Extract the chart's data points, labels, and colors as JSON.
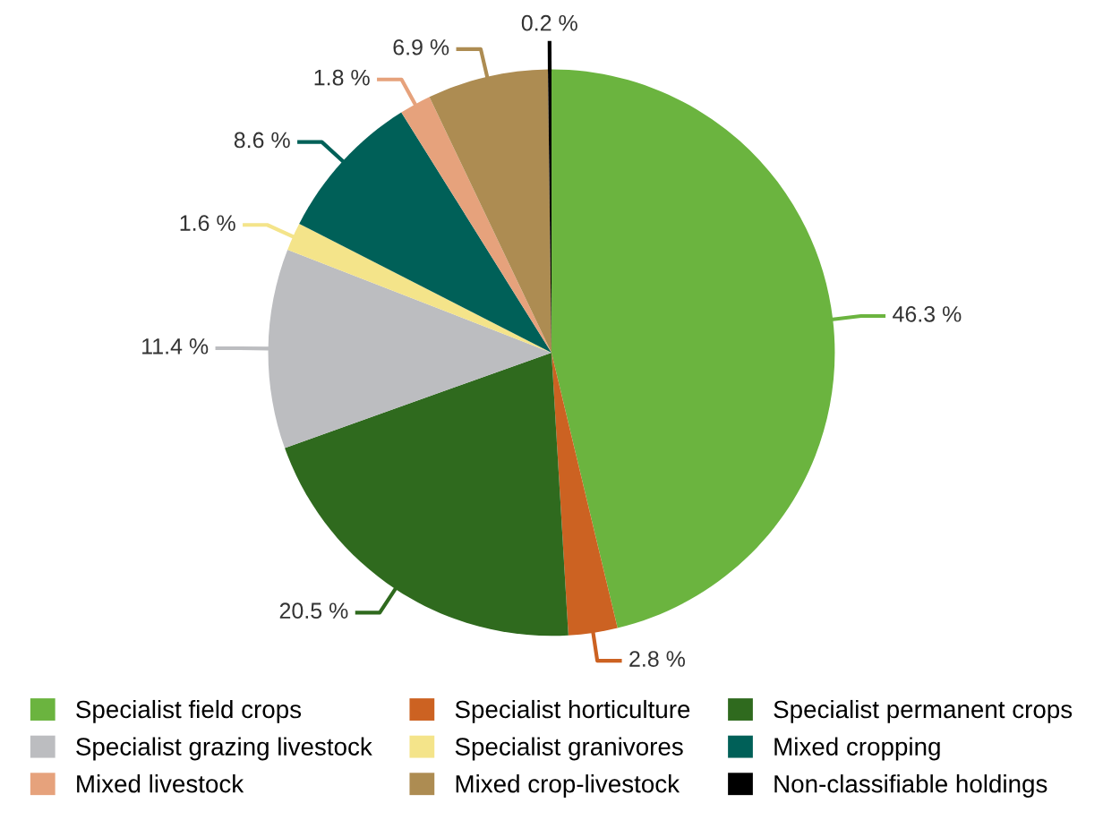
{
  "chart_data": {
    "type": "pie",
    "categories": [
      "Specialist field crops",
      "Specialist horticulture",
      "Specialist permanent crops",
      "Specialist grazing livestock",
      "Specialist granivores",
      "Mixed cropping",
      "Mixed livestock",
      "Mixed crop-livestock",
      "Non-classifiable holdings"
    ],
    "values": [
      46.3,
      2.8,
      20.5,
      11.4,
      1.6,
      8.6,
      1.8,
      6.9,
      0.2
    ],
    "value_labels": [
      "46.3 %",
      "2.8 %",
      "20.5 %",
      "11.4 %",
      "1.6 %",
      "8.6 %",
      "1.8 %",
      "6.9 %",
      "0.2 %"
    ],
    "colors": [
      "#6bb43f",
      "#cc6222",
      "#2f6a1e",
      "#bcbdc0",
      "#f4e48a",
      "#006058",
      "#e6a27c",
      "#ad8c52",
      "#000000"
    ],
    "legend": "bottom"
  }
}
